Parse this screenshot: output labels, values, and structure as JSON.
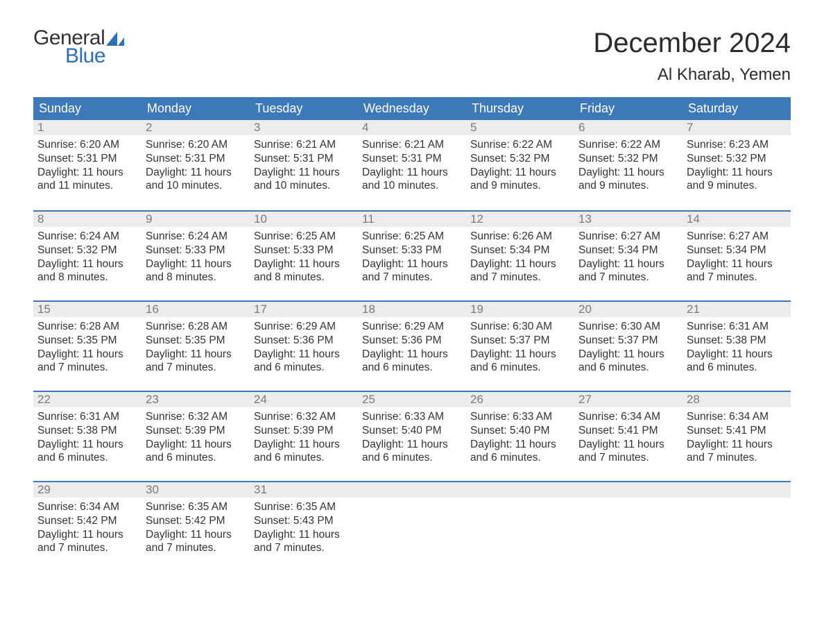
{
  "logo": {
    "part1": "General",
    "part2": "Blue",
    "text_color": "#333333",
    "accent_color": "#2d6fb6"
  },
  "title": "December 2024",
  "subtitle": "Al Kharab, Yemen",
  "colors": {
    "header_bg": "#3d78b9",
    "header_text": "#ffffff",
    "daynum_bg": "#ececec",
    "daynum_text": "#7a7a7a",
    "body_text": "#333333",
    "week_border": "#3d78b9",
    "page_bg": "#ffffff"
  },
  "day_names": [
    "Sunday",
    "Monday",
    "Tuesday",
    "Wednesday",
    "Thursday",
    "Friday",
    "Saturday"
  ],
  "weeks": [
    [
      {
        "n": "1",
        "sr": "Sunrise: 6:20 AM",
        "ss": "Sunset: 5:31 PM",
        "d1": "Daylight: 11 hours",
        "d2": "and 11 minutes."
      },
      {
        "n": "2",
        "sr": "Sunrise: 6:20 AM",
        "ss": "Sunset: 5:31 PM",
        "d1": "Daylight: 11 hours",
        "d2": "and 10 minutes."
      },
      {
        "n": "3",
        "sr": "Sunrise: 6:21 AM",
        "ss": "Sunset: 5:31 PM",
        "d1": "Daylight: 11 hours",
        "d2": "and 10 minutes."
      },
      {
        "n": "4",
        "sr": "Sunrise: 6:21 AM",
        "ss": "Sunset: 5:31 PM",
        "d1": "Daylight: 11 hours",
        "d2": "and 10 minutes."
      },
      {
        "n": "5",
        "sr": "Sunrise: 6:22 AM",
        "ss": "Sunset: 5:32 PM",
        "d1": "Daylight: 11 hours",
        "d2": "and 9 minutes."
      },
      {
        "n": "6",
        "sr": "Sunrise: 6:22 AM",
        "ss": "Sunset: 5:32 PM",
        "d1": "Daylight: 11 hours",
        "d2": "and 9 minutes."
      },
      {
        "n": "7",
        "sr": "Sunrise: 6:23 AM",
        "ss": "Sunset: 5:32 PM",
        "d1": "Daylight: 11 hours",
        "d2": "and 9 minutes."
      }
    ],
    [
      {
        "n": "8",
        "sr": "Sunrise: 6:24 AM",
        "ss": "Sunset: 5:32 PM",
        "d1": "Daylight: 11 hours",
        "d2": "and 8 minutes."
      },
      {
        "n": "9",
        "sr": "Sunrise: 6:24 AM",
        "ss": "Sunset: 5:33 PM",
        "d1": "Daylight: 11 hours",
        "d2": "and 8 minutes."
      },
      {
        "n": "10",
        "sr": "Sunrise: 6:25 AM",
        "ss": "Sunset: 5:33 PM",
        "d1": "Daylight: 11 hours",
        "d2": "and 8 minutes."
      },
      {
        "n": "11",
        "sr": "Sunrise: 6:25 AM",
        "ss": "Sunset: 5:33 PM",
        "d1": "Daylight: 11 hours",
        "d2": "and 7 minutes."
      },
      {
        "n": "12",
        "sr": "Sunrise: 6:26 AM",
        "ss": "Sunset: 5:34 PM",
        "d1": "Daylight: 11 hours",
        "d2": "and 7 minutes."
      },
      {
        "n": "13",
        "sr": "Sunrise: 6:27 AM",
        "ss": "Sunset: 5:34 PM",
        "d1": "Daylight: 11 hours",
        "d2": "and 7 minutes."
      },
      {
        "n": "14",
        "sr": "Sunrise: 6:27 AM",
        "ss": "Sunset: 5:34 PM",
        "d1": "Daylight: 11 hours",
        "d2": "and 7 minutes."
      }
    ],
    [
      {
        "n": "15",
        "sr": "Sunrise: 6:28 AM",
        "ss": "Sunset: 5:35 PM",
        "d1": "Daylight: 11 hours",
        "d2": "and 7 minutes."
      },
      {
        "n": "16",
        "sr": "Sunrise: 6:28 AM",
        "ss": "Sunset: 5:35 PM",
        "d1": "Daylight: 11 hours",
        "d2": "and 7 minutes."
      },
      {
        "n": "17",
        "sr": "Sunrise: 6:29 AM",
        "ss": "Sunset: 5:36 PM",
        "d1": "Daylight: 11 hours",
        "d2": "and 6 minutes."
      },
      {
        "n": "18",
        "sr": "Sunrise: 6:29 AM",
        "ss": "Sunset: 5:36 PM",
        "d1": "Daylight: 11 hours",
        "d2": "and 6 minutes."
      },
      {
        "n": "19",
        "sr": "Sunrise: 6:30 AM",
        "ss": "Sunset: 5:37 PM",
        "d1": "Daylight: 11 hours",
        "d2": "and 6 minutes."
      },
      {
        "n": "20",
        "sr": "Sunrise: 6:30 AM",
        "ss": "Sunset: 5:37 PM",
        "d1": "Daylight: 11 hours",
        "d2": "and 6 minutes."
      },
      {
        "n": "21",
        "sr": "Sunrise: 6:31 AM",
        "ss": "Sunset: 5:38 PM",
        "d1": "Daylight: 11 hours",
        "d2": "and 6 minutes."
      }
    ],
    [
      {
        "n": "22",
        "sr": "Sunrise: 6:31 AM",
        "ss": "Sunset: 5:38 PM",
        "d1": "Daylight: 11 hours",
        "d2": "and 6 minutes."
      },
      {
        "n": "23",
        "sr": "Sunrise: 6:32 AM",
        "ss": "Sunset: 5:39 PM",
        "d1": "Daylight: 11 hours",
        "d2": "and 6 minutes."
      },
      {
        "n": "24",
        "sr": "Sunrise: 6:32 AM",
        "ss": "Sunset: 5:39 PM",
        "d1": "Daylight: 11 hours",
        "d2": "and 6 minutes."
      },
      {
        "n": "25",
        "sr": "Sunrise: 6:33 AM",
        "ss": "Sunset: 5:40 PM",
        "d1": "Daylight: 11 hours",
        "d2": "and 6 minutes."
      },
      {
        "n": "26",
        "sr": "Sunrise: 6:33 AM",
        "ss": "Sunset: 5:40 PM",
        "d1": "Daylight: 11 hours",
        "d2": "and 6 minutes."
      },
      {
        "n": "27",
        "sr": "Sunrise: 6:34 AM",
        "ss": "Sunset: 5:41 PM",
        "d1": "Daylight: 11 hours",
        "d2": "and 7 minutes."
      },
      {
        "n": "28",
        "sr": "Sunrise: 6:34 AM",
        "ss": "Sunset: 5:41 PM",
        "d1": "Daylight: 11 hours",
        "d2": "and 7 minutes."
      }
    ],
    [
      {
        "n": "29",
        "sr": "Sunrise: 6:34 AM",
        "ss": "Sunset: 5:42 PM",
        "d1": "Daylight: 11 hours",
        "d2": "and 7 minutes."
      },
      {
        "n": "30",
        "sr": "Sunrise: 6:35 AM",
        "ss": "Sunset: 5:42 PM",
        "d1": "Daylight: 11 hours",
        "d2": "and 7 minutes."
      },
      {
        "n": "31",
        "sr": "Sunrise: 6:35 AM",
        "ss": "Sunset: 5:43 PM",
        "d1": "Daylight: 11 hours",
        "d2": "and 7 minutes."
      },
      null,
      null,
      null,
      null
    ]
  ]
}
